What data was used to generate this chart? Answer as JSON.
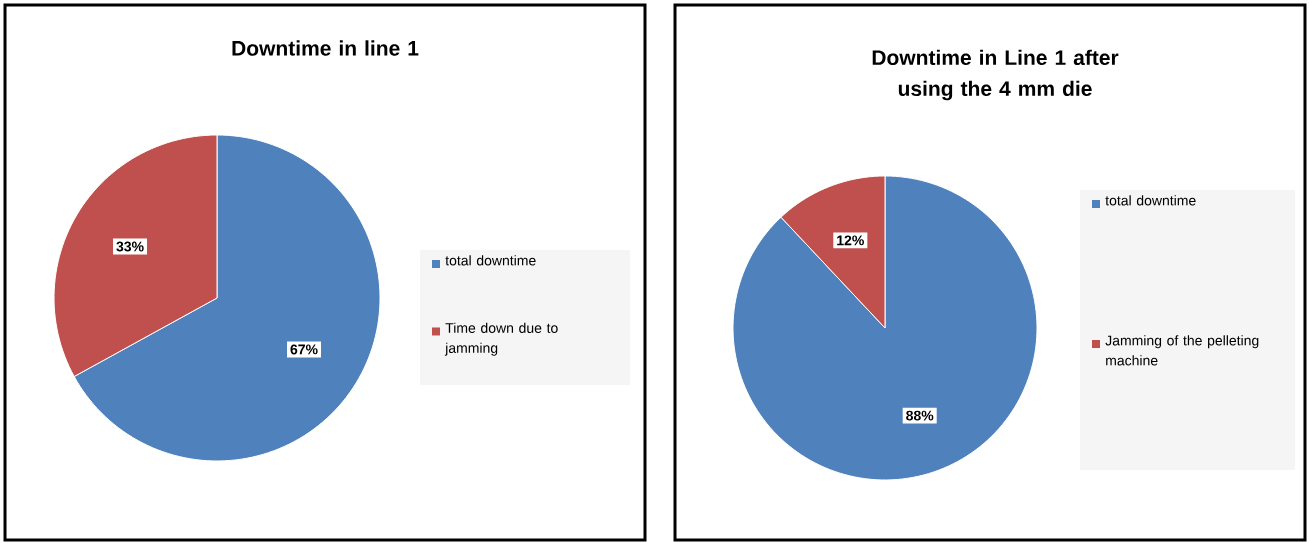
{
  "chart_data": [
    {
      "type": "pie",
      "title": "Downtime in line 1",
      "categories": [
        "total downtime",
        "Time down due to jamming"
      ],
      "values": [
        67,
        33
      ],
      "colors": [
        "#4f81bd",
        "#c0504d"
      ],
      "value_labels": [
        "67%",
        "33%"
      ],
      "legend": "right"
    },
    {
      "type": "pie",
      "title": "Downtime in Line 1 after using the 4 mm die",
      "categories": [
        "total downtime",
        "Jamming of the pelleting machine"
      ],
      "values": [
        88,
        12
      ],
      "colors": [
        "#4f81bd",
        "#c0504d"
      ],
      "value_labels": [
        "88%",
        "12%"
      ],
      "legend": "right"
    }
  ]
}
